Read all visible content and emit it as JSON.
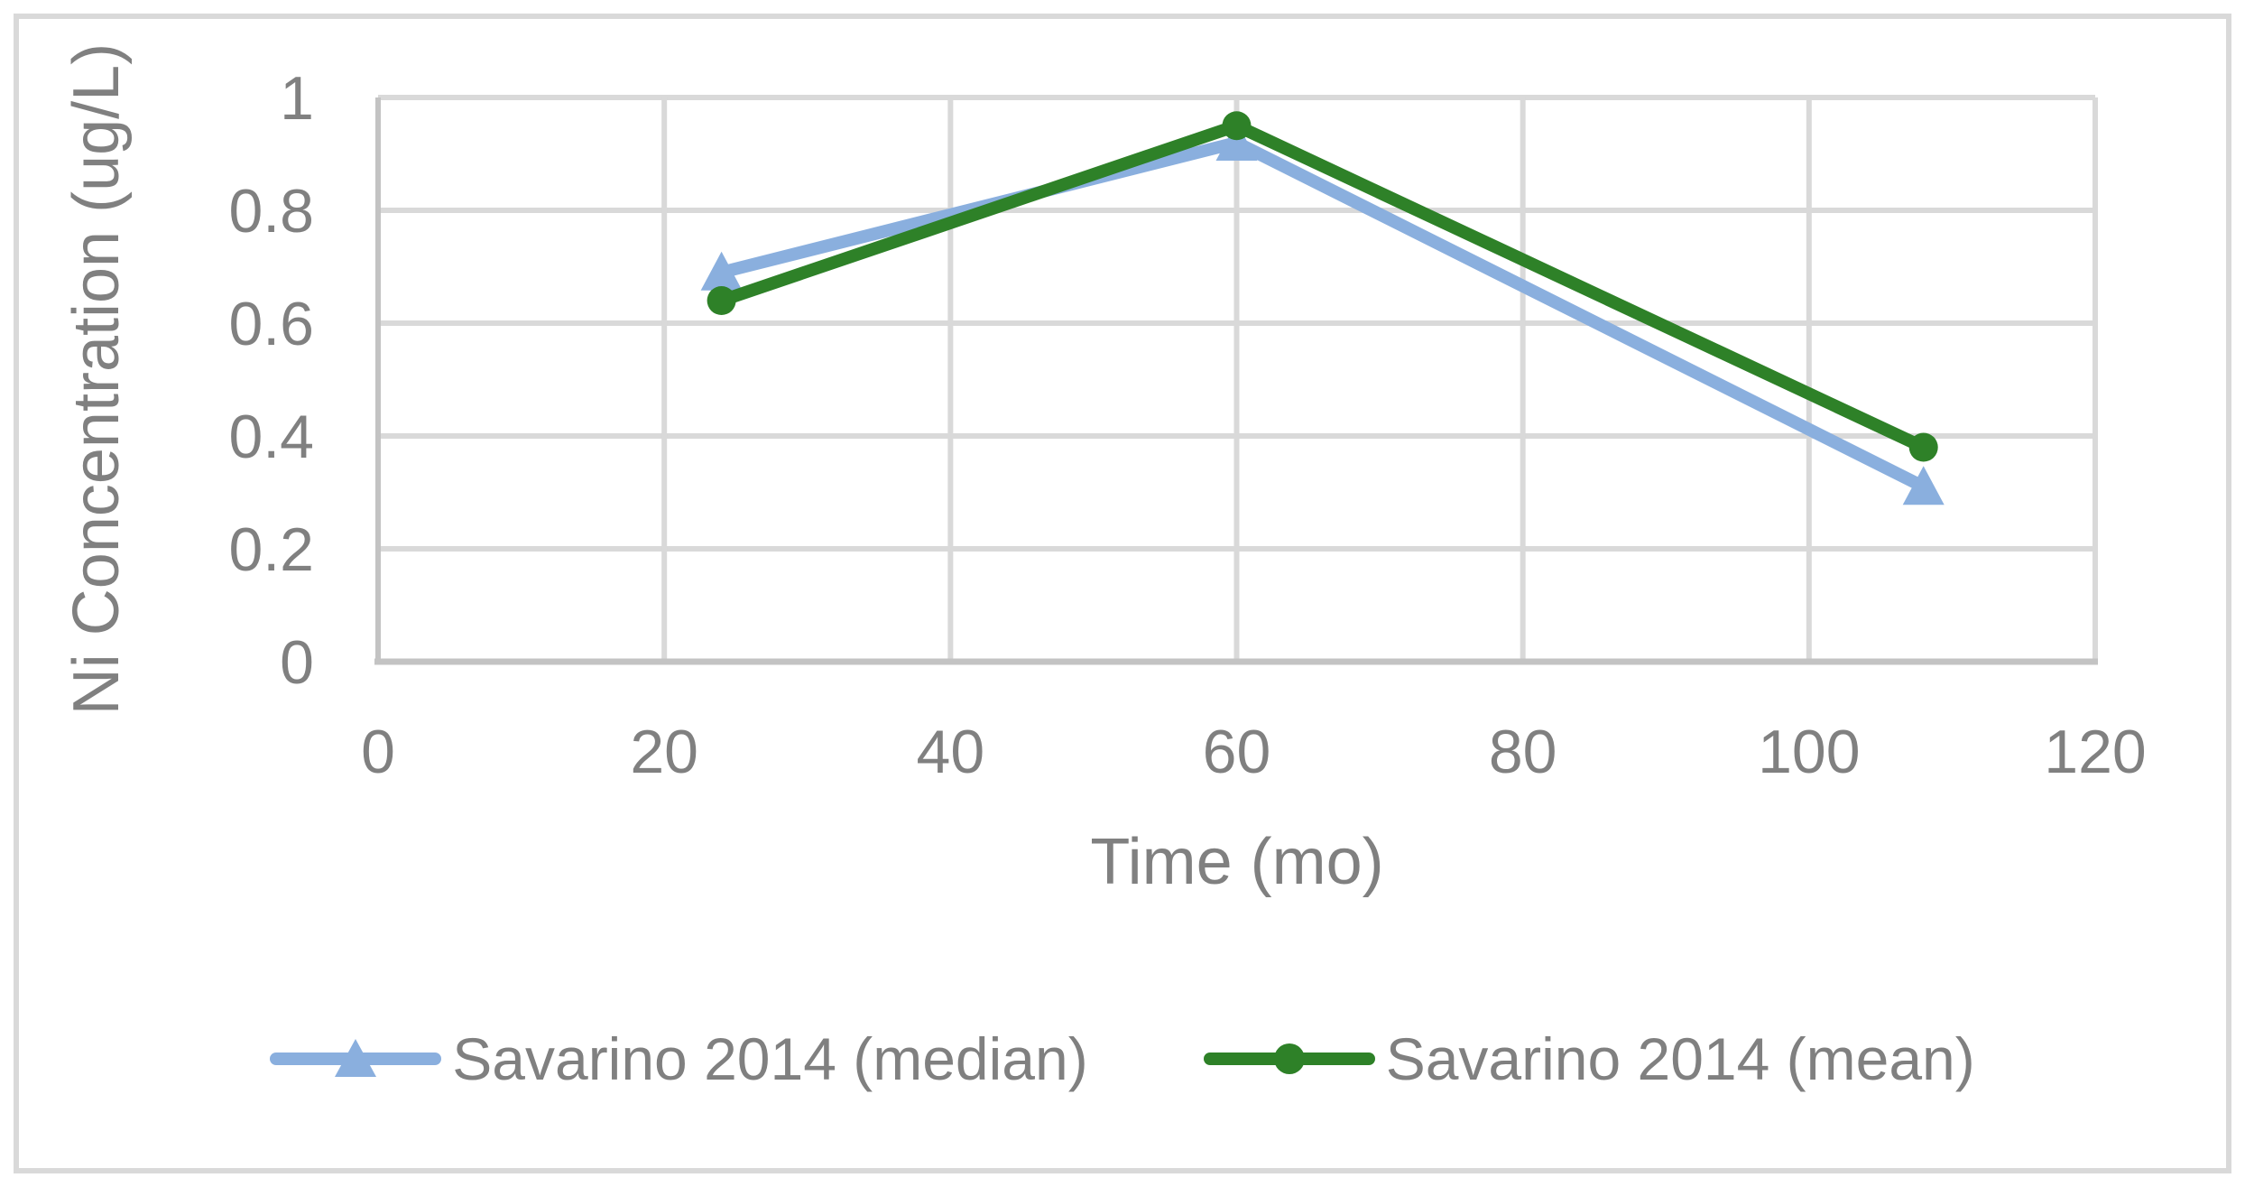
{
  "figure": {
    "border_color": "#d9d9d9",
    "background_color": "#ffffff"
  },
  "chart_data": {
    "type": "line",
    "title": "",
    "xlabel": "Time (mo)",
    "ylabel": "Ni Concentration (ug/L)",
    "xlim": [
      0,
      120
    ],
    "ylim": [
      0,
      1
    ],
    "x_ticks": [
      0,
      20,
      40,
      60,
      80,
      100,
      120
    ],
    "y_ticks": [
      0,
      0.2,
      0.4,
      0.6,
      0.8,
      1
    ],
    "grid": true,
    "legend_position": "bottom-center",
    "x": [
      24,
      60,
      108
    ],
    "series": [
      {
        "name": "Savarino 2014 (median)",
        "marker": "triangle",
        "color": "#8aafde",
        "values": [
          0.69,
          0.92,
          0.31
        ]
      },
      {
        "name": "Savarino 2014 (mean)",
        "marker": "circle",
        "color": "#2e8128",
        "values": [
          0.64,
          0.95,
          0.38
        ]
      }
    ],
    "gridline_color": "#d9d9d9",
    "axis_line_color": "#c3c3c3",
    "text_color": "#808080"
  }
}
